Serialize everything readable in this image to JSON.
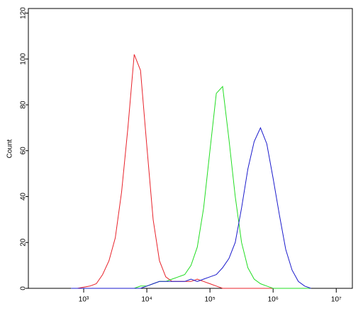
{
  "chart_data": {
    "type": "line",
    "y_label": "Count",
    "log_x": true,
    "x": [
      631,
      794,
      1000,
      1259,
      1585,
      1995,
      2512,
      3162,
      3981,
      5012,
      6310,
      7943,
      10000,
      12589,
      15849,
      19953,
      25119,
      31623,
      39811,
      50119,
      63096,
      79433,
      100000,
      125893,
      158489,
      199526,
      251189,
      316228,
      398107,
      501187,
      630957,
      794328,
      1000000,
      1258925,
      1584893,
      1995262,
      2511886,
      3162278,
      3981072
    ],
    "series": [
      {
        "color": "#e8222a",
        "values": [
          0,
          0,
          0.5,
          1,
          2,
          6,
          12,
          22,
          42,
          70,
          102,
          95,
          62,
          30,
          12,
          5,
          3,
          3,
          3,
          3,
          4,
          3,
          2,
          1,
          0,
          0,
          0,
          0,
          0,
          0,
          0,
          0,
          0,
          0,
          0,
          0,
          0,
          0,
          0
        ]
      },
      {
        "color": "#22dd22",
        "values": [
          0,
          0,
          0,
          0,
          0,
          0,
          0,
          0,
          0,
          0,
          0,
          1,
          1,
          2,
          3,
          3,
          4,
          5,
          6,
          10,
          18,
          35,
          60,
          85,
          88,
          65,
          40,
          20,
          9,
          4,
          2,
          1,
          0,
          0,
          0,
          0,
          0,
          0,
          0
        ]
      },
      {
        "color": "#1a1acc",
        "values": [
          0,
          0,
          0,
          0,
          0,
          0,
          0,
          0,
          0,
          0,
          0,
          0,
          1,
          2,
          3,
          3,
          3,
          3,
          3,
          4,
          3,
          4,
          5,
          6,
          9,
          13,
          20,
          35,
          52,
          64,
          70,
          63,
          48,
          32,
          17,
          8,
          3,
          1,
          0
        ]
      }
    ],
    "xlim": [
      133,
      18000000
    ],
    "xticks": [
      {
        "value": 1000,
        "label": "10³"
      },
      {
        "value": 10000,
        "label": "10⁴"
      },
      {
        "value": 100000,
        "label": "10⁵"
      },
      {
        "value": 1000000,
        "label": "10⁶"
      },
      {
        "value": 10000000,
        "label": "10⁷"
      }
    ],
    "ylim": [
      0,
      122
    ],
    "yticks": [
      0,
      20,
      40,
      60,
      80,
      100,
      120
    ]
  }
}
